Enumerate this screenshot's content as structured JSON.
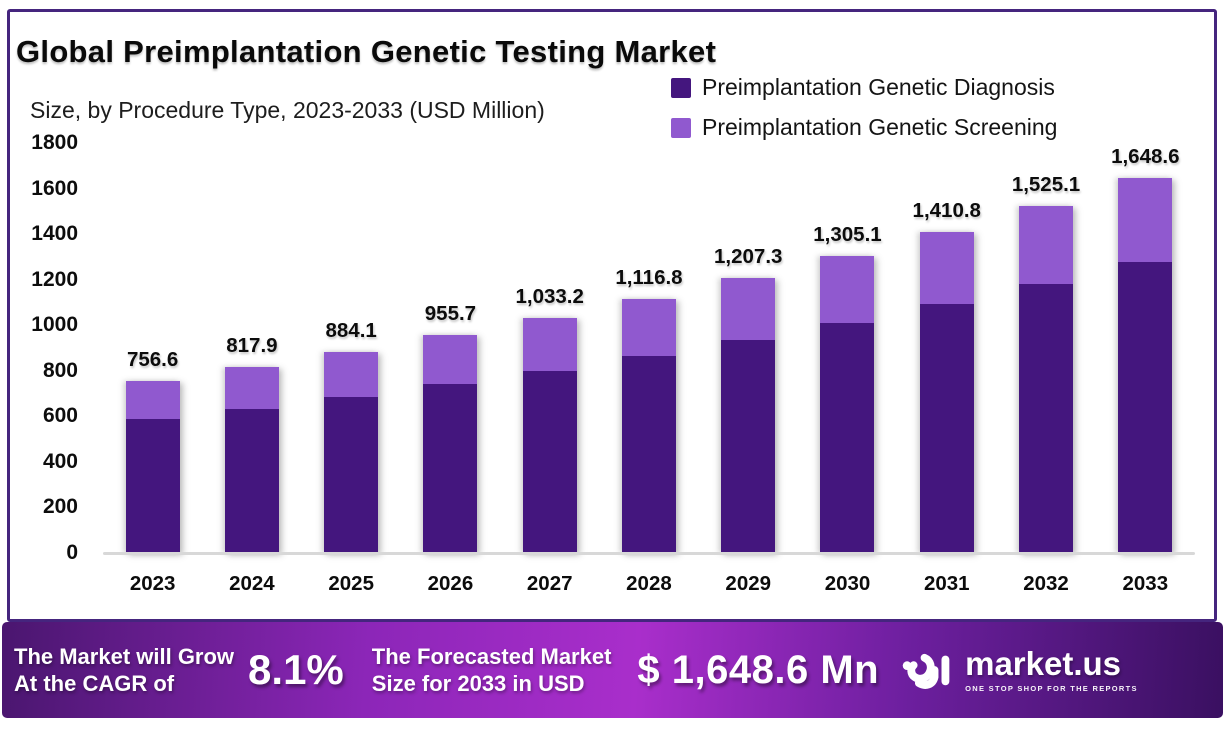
{
  "header": {
    "title": "Global Preimplantation Genetic Testing Market",
    "subtitle": "Size, by Procedure Type, 2023-2033 (USD Million)"
  },
  "legend": {
    "items": [
      {
        "label": "Preimplantation Genetic Diagnosis",
        "color": "#44167e"
      },
      {
        "label": "Preimplantation Genetic Screening",
        "color": "#9059cf"
      }
    ]
  },
  "chart_data": {
    "type": "bar",
    "stacked": true,
    "title": "Global Preimplantation Genetic Testing Market Size, by Procedure Type, 2023-2033 (USD Million)",
    "unit": "USD Million",
    "categories": [
      "2023",
      "2024",
      "2025",
      "2026",
      "2027",
      "2028",
      "2029",
      "2030",
      "2031",
      "2032",
      "2033"
    ],
    "series": [
      {
        "name": "Preimplantation Genetic Diagnosis",
        "color": "#44167e",
        "values": [
          586.4,
          633.9,
          685.2,
          740.7,
          800.7,
          865.5,
          935.7,
          1011.5,
          1093.4,
          1181.9,
          1277.7
        ]
      },
      {
        "name": "Preimplantation Genetic Screening",
        "color": "#9059cf",
        "values": [
          170.2,
          184.0,
          198.9,
          215.0,
          232.5,
          251.3,
          271.6,
          293.6,
          317.4,
          343.2,
          370.9
        ]
      }
    ],
    "totals": [
      756.6,
      817.9,
      884.1,
      955.7,
      1033.2,
      1116.8,
      1207.3,
      1305.1,
      1410.8,
      1525.1,
      1648.6
    ],
    "total_labels": [
      "756.6",
      "817.9",
      "884.1",
      "955.7",
      "1,033.2",
      "1,116.8",
      "1,207.3",
      "1,305.1",
      "1,410.8",
      "1,525.1",
      "1,648.6"
    ],
    "ylim": [
      0,
      1800
    ],
    "yticks": [
      0,
      200,
      400,
      600,
      800,
      1000,
      1200,
      1400,
      1600,
      1800
    ],
    "grid": false,
    "legend_position": "top-right"
  },
  "banner": {
    "cagr_label_line1": "The Market will Grow",
    "cagr_label_line2": "At the CAGR of",
    "cagr_value": "8.1%",
    "forecast_label_line1": "The Forecasted Market",
    "forecast_label_line2": "Size for 2033 in USD",
    "forecast_value": "$ 1,648.6 Mn",
    "brand": "market.us",
    "brand_tagline": "ONE STOP SHOP FOR THE REPORTS"
  },
  "colors": {
    "card_border": "#45257e",
    "axis_line": "#d8d8d8",
    "banner_gradient": [
      "#4a166f",
      "#a92ecb",
      "#3a1061"
    ],
    "text": "#0c0c0c",
    "banner_text": "#ffffff"
  }
}
